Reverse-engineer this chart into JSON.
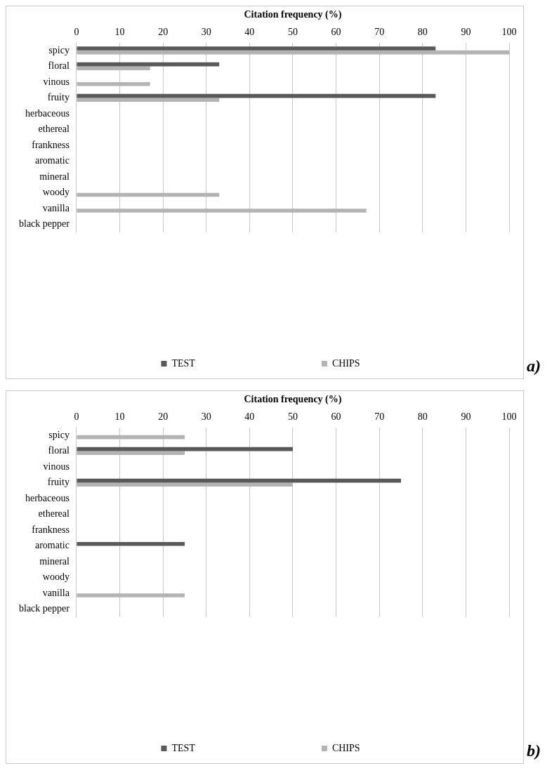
{
  "chart_data": [
    {
      "type": "bar",
      "orientation": "horizontal",
      "xlabel": "Citation frequency (%)",
      "categories": [
        "spicy",
        "floral",
        "vinous",
        "fruity",
        "herbaceous",
        "ethereal",
        "frankness",
        "aromatic",
        "mineral",
        "woody",
        "vanilla",
        "black pepper"
      ],
      "series": [
        {
          "name": "TEST",
          "color": "#595959",
          "values": [
            83,
            33,
            0,
            83,
            0,
            0,
            0,
            0,
            0,
            0,
            0,
            0
          ]
        },
        {
          "name": "CHIPS",
          "color": "#b3b3b3",
          "values": [
            100,
            17,
            17,
            33,
            0,
            0,
            0,
            0,
            0,
            33,
            67,
            0
          ]
        }
      ],
      "xlim": [
        0,
        100
      ],
      "xticks": [
        0,
        10,
        20,
        30,
        40,
        50,
        60,
        70,
        80,
        90,
        100
      ],
      "grid": "x",
      "legend": "bottom",
      "annotations": [
        "a)"
      ]
    },
    {
      "type": "bar",
      "orientation": "horizontal",
      "xlabel": "Citation frequency (%)",
      "categories": [
        "spicy",
        "floral",
        "vinous",
        "fruity",
        "herbaceous",
        "ethereal",
        "frankness",
        "aromatic",
        "mineral",
        "woody",
        "vanilla",
        "black pepper"
      ],
      "series": [
        {
          "name": "TEST",
          "color": "#595959",
          "values": [
            0,
            50,
            0,
            75,
            0,
            0,
            0,
            25,
            0,
            0,
            0,
            0
          ]
        },
        {
          "name": "CHIPS",
          "color": "#b3b3b3",
          "values": [
            25,
            25,
            0,
            50,
            0,
            0,
            0,
            0,
            0,
            0,
            25,
            0
          ]
        }
      ],
      "xlim": [
        0,
        100
      ],
      "xticks": [
        0,
        10,
        20,
        30,
        40,
        50,
        60,
        70,
        80,
        90,
        100
      ],
      "grid": "x",
      "legend": "bottom",
      "annotations": [
        "b)"
      ]
    }
  ]
}
